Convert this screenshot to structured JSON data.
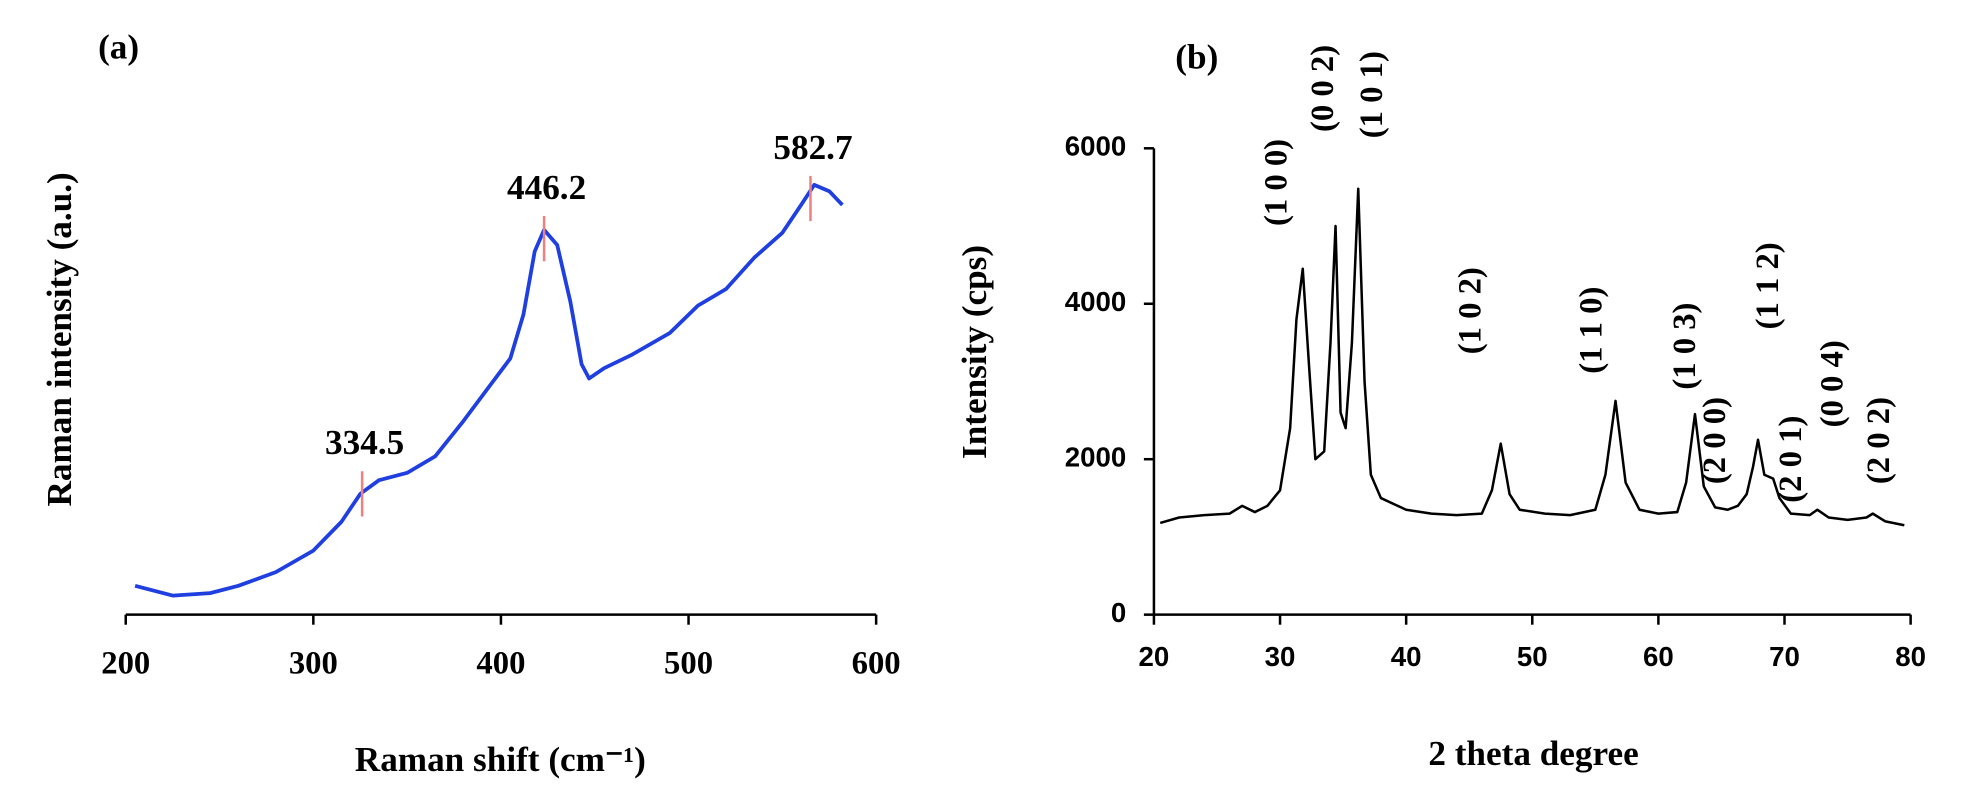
{
  "chart_data": [
    {
      "type": "line",
      "label": "(a)",
      "x_label": "Raman shift (cm⁻¹)",
      "y_label": "Raman intensity (a.u.)",
      "xlim": [
        200,
        600
      ],
      "xticks": [
        200,
        300,
        400,
        500,
        600
      ],
      "ylim": [
        0,
        100
      ],
      "series": [
        {
          "color": "#1f3fe0",
          "x": [
            205,
            225,
            245,
            260,
            280,
            300,
            315,
            325,
            335,
            350,
            365,
            380,
            395,
            405,
            412,
            418,
            423,
            430,
            437,
            443,
            447,
            455,
            470,
            490,
            505,
            520,
            535,
            550,
            560,
            567,
            575,
            582
          ],
          "values": [
            5.9,
            3.9,
            4.4,
            5.9,
            8.7,
            13.1,
            19,
            24.7,
            27.5,
            29,
            32.4,
            39.6,
            47.3,
            52.4,
            61.4,
            74.3,
            78.7,
            75.6,
            64,
            51.2,
            48.3,
            50.4,
            53.2,
            57.6,
            63.2,
            66.6,
            73,
            78.1,
            83.8,
            87.9,
            86.6,
            83.8
          ]
        }
      ],
      "annotations": [
        {
          "text": "334.5",
          "x": 326,
          "y": 24.7,
          "color": "#f08080"
        },
        {
          "text": "446.2",
          "x": 423,
          "y": 76.9,
          "color": "#f08080"
        },
        {
          "text": "582.7",
          "x": 565,
          "y": 85.1,
          "color": "#f08080"
        }
      ]
    },
    {
      "type": "line",
      "label": "(b)",
      "x_label": "2 theta degree",
      "y_label": "Intensity (cps)",
      "xlim": [
        20,
        80
      ],
      "xticks": [
        20,
        30,
        40,
        50,
        60,
        70,
        80
      ],
      "ylim": [
        0,
        6000
      ],
      "yticks": [
        0,
        2000,
        4000,
        6000
      ],
      "series": [
        {
          "color": "#000000",
          "x": [
            20.5,
            22,
            24,
            26,
            27,
            28,
            29,
            30,
            30.8,
            31.3,
            31.8,
            32.3,
            32.8,
            33.5,
            34.0,
            34.4,
            34.8,
            35.2,
            35.7,
            36.2,
            36.7,
            37.2,
            38,
            40,
            42,
            44,
            46,
            46.8,
            47.5,
            48.2,
            49,
            51,
            53,
            55,
            55.8,
            56.6,
            57.4,
            58.5,
            60,
            61.5,
            62.2,
            62.9,
            63.6,
            64.5,
            65.5,
            66.3,
            67,
            67.5,
            67.9,
            68.4,
            69.1,
            69.6,
            70.5,
            72,
            72.6,
            73.5,
            75,
            76.5,
            77,
            78,
            79.5
          ],
          "values": [
            1180,
            1250,
            1280,
            1300,
            1400,
            1320,
            1400,
            1600,
            2400,
            3800,
            4450,
            3200,
            2000,
            2100,
            3500,
            5000,
            2600,
            2400,
            3500,
            5480,
            3000,
            1800,
            1500,
            1350,
            1300,
            1280,
            1300,
            1600,
            2200,
            1550,
            1350,
            1300,
            1280,
            1350,
            1800,
            2750,
            1700,
            1350,
            1300,
            1320,
            1700,
            2580,
            1650,
            1380,
            1350,
            1400,
            1550,
            1900,
            2250,
            1800,
            1750,
            1500,
            1300,
            1280,
            1350,
            1250,
            1220,
            1250,
            1300,
            1200,
            1150
          ]
        }
      ],
      "annotations": [
        {
          "text": "(1 0 0)",
          "x": 29.9,
          "y": 5000
        },
        {
          "text": "(0 0 2)",
          "x": 33.6,
          "y": 6210
        },
        {
          "text": "(1 0 1)",
          "x": 37.5,
          "y": 6130
        },
        {
          "text": "(1 0 2)",
          "x": 45.3,
          "y": 3350
        },
        {
          "text": "(1 1 0)",
          "x": 54.9,
          "y": 3100
        },
        {
          "text": "(1 0 3)",
          "x": 62.3,
          "y": 2895
        },
        {
          "text": "(2 0 0)",
          "x": 64.7,
          "y": 1680
        },
        {
          "text": "(1 1 2)",
          "x": 68.9,
          "y": 3670
        },
        {
          "text": "(2 0 1)",
          "x": 70.7,
          "y": 1440
        },
        {
          "text": "(0 0 4)",
          "x": 74,
          "y": 2410
        },
        {
          "text": "(2 0 2)",
          "x": 77.7,
          "y": 1680
        }
      ]
    }
  ]
}
